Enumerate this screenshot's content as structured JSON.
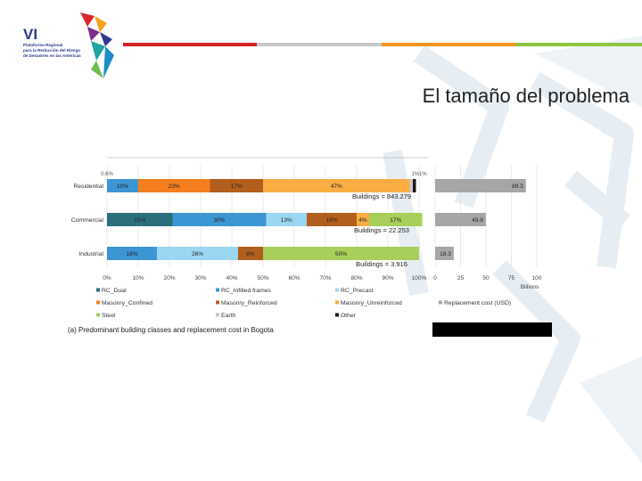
{
  "slide": {
    "title": "El tamaño del problema",
    "logo": {
      "mark": "VI",
      "lines": [
        "Plataforma Regional",
        "para la Reducción del Riesgo",
        "de Desastres en las Américas"
      ]
    },
    "colors": {
      "bar_red": "#d2232a",
      "bar_grey": "#c8c8c8",
      "bar_orange": "#f7941d",
      "bar_green": "#8dc63f",
      "watermark": "#e4edf3"
    }
  },
  "chart_data": [
    {
      "type": "bar",
      "orientation": "horizontal",
      "stacked": true,
      "categories": [
        "Residential",
        "Commercial",
        "Industrial"
      ],
      "xlim": [
        0,
        100
      ],
      "xticks": [
        "0%",
        "10%",
        "20%",
        "30%",
        "40%",
        "50%",
        "60%",
        "70%",
        "80%",
        "90%",
        "100%"
      ],
      "series": [
        {
          "name": "RC_Dual",
          "color": "#2c6f7c",
          "values": [
            0,
            21,
            0
          ]
        },
        {
          "name": "RC_Infilled frames",
          "color": "#3d96d4",
          "values": [
            10,
            30,
            16
          ]
        },
        {
          "name": "RC_Precast",
          "color": "#9bd7f2",
          "values": [
            0,
            13,
            26
          ]
        },
        {
          "name": "Masonry_Confined",
          "color": "#f57f20",
          "values": [
            23,
            0,
            0
          ]
        },
        {
          "name": "Masonry_Reinforced",
          "color": "#b25e1d",
          "values": [
            17,
            16,
            8
          ]
        },
        {
          "name": "Masonry_Unreinforced",
          "color": "#f9ad42",
          "values": [
            47,
            4,
            0
          ]
        },
        {
          "name": "Steel",
          "color": "#a7cf5a",
          "values": [
            0,
            17,
            50
          ]
        },
        {
          "name": "Earth",
          "color": "#c7c7c7",
          "values": [
            1,
            0,
            0
          ]
        },
        {
          "name": "Other",
          "color": "#1a1a1a",
          "values": [
            1,
            0,
            0
          ]
        }
      ],
      "segment_labels": [
        [
          "10%",
          "23%",
          "17%",
          "47%"
        ],
        [
          "21%",
          "30%",
          "13%",
          "16%",
          "4%",
          "17%"
        ],
        [
          "16%",
          "26%",
          "8%",
          "50%"
        ]
      ],
      "annotations": [
        {
          "text": "0.6%",
          "row": 0,
          "pos": 0
        },
        {
          "text": "1%",
          "row": 0,
          "pos": 98.8
        },
        {
          "text": "1%",
          "row": 0,
          "pos": 101.2
        }
      ],
      "building_counts": [
        "Buildings = 843.279",
        "Buildings = 22.253",
        "Buildings = 3.916"
      ]
    },
    {
      "type": "bar",
      "orientation": "horizontal",
      "categories": [
        "Residential",
        "Commercial",
        "Industrial"
      ],
      "values": [
        89.3,
        49.9,
        18.3
      ],
      "xlim": [
        0,
        100
      ],
      "xticks": [
        "0",
        "25",
        "50",
        "75",
        "100"
      ],
      "xlabel": "Billions",
      "series_name": "Replacement cost (USD)",
      "color": "#a6a6a6"
    }
  ],
  "caption": "(a) Predominant building classes and replacement cost in Bogota"
}
